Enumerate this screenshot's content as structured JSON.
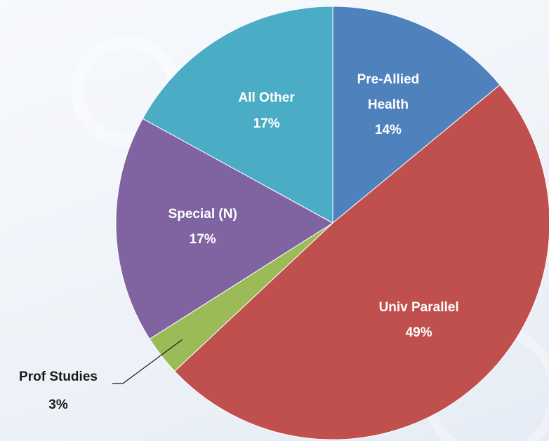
{
  "chart_data": {
    "type": "pie",
    "categories": [
      "Pre-Allied Health",
      "Univ Parallel",
      "Prof Studies",
      "Special (N)",
      "All Other"
    ],
    "values": [
      14,
      49,
      3,
      17,
      17
    ],
    "value_labels": [
      "14%",
      "49%",
      "3%",
      "17%",
      "17%"
    ],
    "colors": [
      "#4f81bd",
      "#c0504d",
      "#9bbb59",
      "#8064a2",
      "#4bacc6"
    ]
  }
}
